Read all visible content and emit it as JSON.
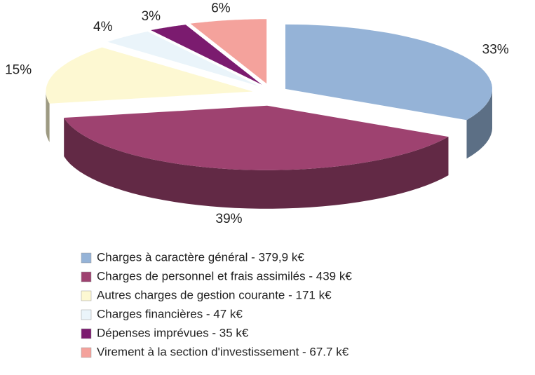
{
  "chart_data": {
    "type": "pie",
    "categories": [
      "Charges à caractère général  - 379,9 k€",
      "Charges de personnel et frais assimilés  - 439 k€",
      "Autres charges de gestion courante  - 171 k€",
      "Charges financières  - 47 k€",
      "Dépenses imprévues  - 35 k€",
      "Virement à la section d'investissement  - 67.7 k€"
    ],
    "values": [
      33,
      39,
      15,
      4,
      3,
      6
    ],
    "value_labels": [
      "33%",
      "39%",
      "15%",
      "4%",
      "3%",
      "6%"
    ],
    "colors": [
      "#95b3d7",
      "#9e4270",
      "#fdf8d2",
      "#eaf4fa",
      "#7b1b6f",
      "#f4a29c"
    ]
  }
}
